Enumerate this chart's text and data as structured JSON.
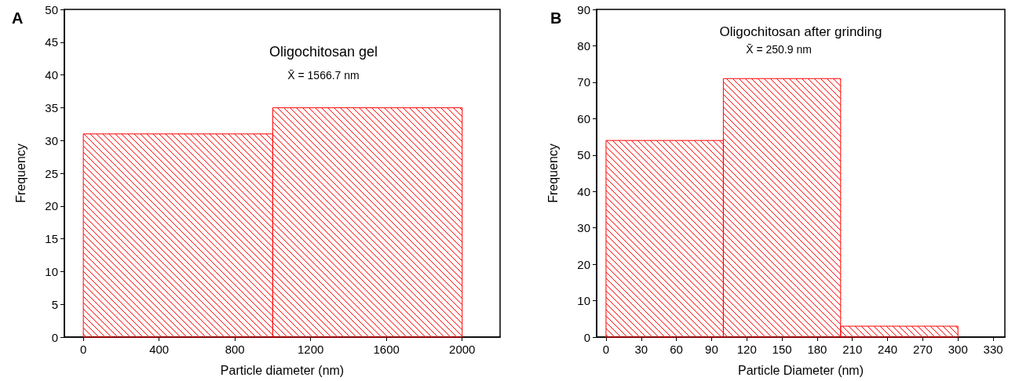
{
  "chart_data": [
    {
      "type": "histogram",
      "title": "A",
      "xlabel": "Particle diameter (nm)",
      "ylabel": "Frequency",
      "annotations": [
        "Oligochitosan gel",
        "X̄ = 1566.7 nm"
      ],
      "bins": [
        0,
        1000,
        2000
      ],
      "values": [
        31,
        35
      ],
      "color": "#ff0000",
      "xlim": [
        -100,
        2200
      ],
      "xticks": [
        0,
        400,
        800,
        1200,
        1600,
        2000
      ],
      "ylim": [
        0,
        50
      ],
      "yticks": [
        0,
        5,
        10,
        15,
        20,
        25,
        30,
        35,
        40,
        45,
        50
      ],
      "grid": false,
      "legend": false
    },
    {
      "type": "histogram",
      "title": "B",
      "xlabel": "Particle Diameter (nm)",
      "ylabel": "Frequency",
      "annotations": [
        "Oligochitosan after grinding",
        "X̄ = 250.9 nm"
      ],
      "bins": [
        0,
        100,
        200,
        300
      ],
      "values": [
        54,
        71,
        3
      ],
      "color": "#ff0000",
      "xlim": [
        -8,
        340
      ],
      "xticks": [
        0,
        30,
        60,
        90,
        120,
        150,
        180,
        210,
        240,
        270,
        300,
        330
      ],
      "ylim": [
        0,
        90
      ],
      "yticks": [
        0,
        10,
        20,
        30,
        40,
        50,
        60,
        70,
        80,
        90
      ],
      "grid": false,
      "legend": false
    }
  ]
}
